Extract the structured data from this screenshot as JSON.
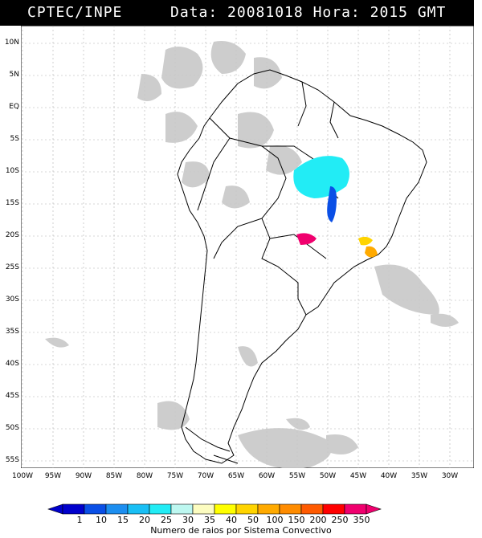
{
  "header": {
    "source": "CPTEC/INPE",
    "data_label": "Data:",
    "data_value": "20081018",
    "hora_label": "Hora:",
    "hora_value": "2015",
    "timezone": "GMT"
  },
  "axes": {
    "lat_labels": [
      "10N",
      "5N",
      "EQ",
      "5S",
      "10S",
      "15S",
      "20S",
      "25S",
      "30S",
      "35S",
      "40S",
      "45S",
      "50S",
      "55S"
    ],
    "lon_labels": [
      "100W",
      "95W",
      "90W",
      "85W",
      "80W",
      "75W",
      "70W",
      "65W",
      "60W",
      "55W",
      "50W",
      "45W",
      "40W",
      "35W",
      "30W"
    ]
  },
  "legend": {
    "values": [
      "1",
      "10",
      "15",
      "20",
      "25",
      "30",
      "35",
      "40",
      "50",
      "100",
      "150",
      "200",
      "250",
      "350"
    ],
    "colors": [
      "#0000cc",
      "#0a4fe6",
      "#1c8ef0",
      "#19bff5",
      "#22ecf5",
      "#bdf7f0",
      "#fcfcc0",
      "#ffff00",
      "#ffd400",
      "#ffaa00",
      "#ff8c00",
      "#ff5a00",
      "#ff0000",
      "#f0006e"
    ],
    "title": "Numero de raios por Sistema Convectivo"
  },
  "map": {
    "cloud_color": "#c8c8c8",
    "coast_color": "#000000"
  }
}
